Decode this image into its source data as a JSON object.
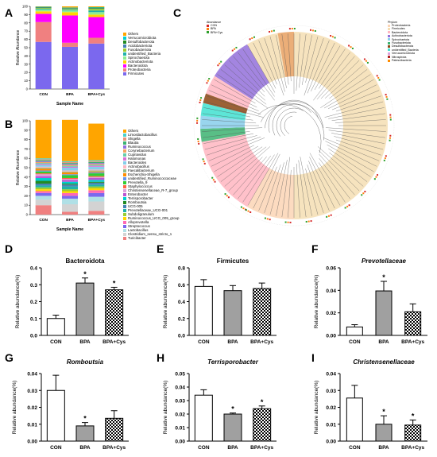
{
  "panel_letters": {
    "A": "A",
    "B": "B",
    "C": "C",
    "D": "D",
    "E": "E",
    "F": "F",
    "G": "G",
    "H": "H",
    "I": "I"
  },
  "colors": {
    "bar_con": "#ffffff",
    "bar_bpa": "#a0a0a0",
    "bar_cys_pattern": "checkered"
  },
  "stacked_axis": {
    "ylabel": "Relative Abundance",
    "xlabel": "Sample Name",
    "ticks": [
      "0",
      "10",
      "20",
      "30",
      "40",
      "50",
      "60",
      "70",
      "80",
      "90",
      "100"
    ]
  },
  "chart_data": [
    {
      "id": "A",
      "type": "bar",
      "stacked": true,
      "categories": [
        "CON",
        "BPA",
        "BPA+Cys"
      ],
      "xlabel": "Sample Name",
      "ylabel": "Relative Abundance",
      "ylim": [
        0,
        100
      ],
      "series": [
        {
          "name": "Firmicutes",
          "color": "#7b68ee",
          "values": [
            57,
            51,
            55
          ]
        },
        {
          "name": "Proteobacteria",
          "color": "#f08080",
          "values": [
            24,
            5,
            7
          ]
        },
        {
          "name": "Bacteroidota",
          "color": "#ff00ff",
          "values": [
            10,
            33,
            25
          ]
        },
        {
          "name": "Actinobacteriota",
          "color": "#ffd700",
          "values": [
            3,
            4,
            3
          ]
        },
        {
          "name": "Spirochaetota",
          "color": "#90ee90",
          "values": [
            2,
            2,
            3
          ]
        },
        {
          "name": "unidentified_Bacteria",
          "color": "#20b2aa",
          "values": [
            1,
            1,
            2
          ]
        },
        {
          "name": "Fusobacteriota",
          "color": "#9acd32",
          "values": [
            1,
            1,
            2
          ]
        },
        {
          "name": "Acidobacteriota",
          "color": "#4682b4",
          "values": [
            0.5,
            0.5,
            0.5
          ]
        },
        {
          "name": "Desulfobacterota",
          "color": "#228b22",
          "values": [
            0.5,
            0.5,
            1
          ]
        },
        {
          "name": "Verrucomicrobiota",
          "color": "#00ced1",
          "values": [
            0.5,
            0.5,
            0.5
          ]
        },
        {
          "name": "Others",
          "color": "#ffa500",
          "values": [
            0.5,
            1.5,
            1
          ]
        }
      ]
    },
    {
      "id": "B",
      "type": "bar",
      "stacked": true,
      "categories": [
        "CON",
        "BPA",
        "BPA+Cys"
      ],
      "xlabel": "Sample Name",
      "ylabel": "Relative Abundance",
      "ylim": [
        0,
        100
      ],
      "series": [
        {
          "name": "Turicibacter",
          "color": "#f08080",
          "values": [
            10,
            3,
            4
          ]
        },
        {
          "name": "Clostridium_sensu_stricto_1",
          "color": "#d3d3d3",
          "values": [
            6,
            8,
            10
          ]
        },
        {
          "name": "Lactobacillus",
          "color": "#b0e0e6",
          "values": [
            4,
            6,
            5
          ]
        },
        {
          "name": "Streptococcus",
          "color": "#7b68ee",
          "values": [
            3,
            3,
            4
          ]
        },
        {
          "name": "Alloprevotella",
          "color": "#ff69b4",
          "values": [
            2,
            3,
            3
          ]
        },
        {
          "name": "Ruminococcus_UCG_005_group",
          "color": "#ffd700",
          "values": [
            2,
            2,
            2
          ]
        },
        {
          "name": "Subdoligranulum",
          "color": "#9acd32",
          "values": [
            2,
            2,
            2
          ]
        },
        {
          "name": "Prevotellaceae_UCG-001",
          "color": "#20b2aa",
          "values": [
            2,
            3,
            2
          ]
        },
        {
          "name": "UCG-005",
          "color": "#4682b4",
          "values": [
            2,
            2,
            2
          ]
        },
        {
          "name": "Romboutsia",
          "color": "#228b22",
          "values": [
            3,
            1,
            1
          ]
        },
        {
          "name": "Terrisporobacter",
          "color": "#00ced1",
          "values": [
            3,
            2,
            2
          ]
        },
        {
          "name": "Enterobacter",
          "color": "#ba55d3",
          "values": [
            2,
            2,
            2
          ]
        },
        {
          "name": "Christensenellaceae_R-7_group",
          "color": "#dda0dd",
          "values": [
            2,
            1,
            1
          ]
        },
        {
          "name": "Staphylococcus",
          "color": "#ff6347",
          "values": [
            1,
            1,
            1
          ]
        },
        {
          "name": "Prevotella_9",
          "color": "#32cd32",
          "values": [
            2,
            3,
            3
          ]
        },
        {
          "name": "unidentified_Ruminococcaceae",
          "color": "#6495ed",
          "values": [
            1,
            1,
            1
          ]
        },
        {
          "name": "Escherichia-Shigella",
          "color": "#ff8c00",
          "values": [
            2,
            2,
            1
          ]
        },
        {
          "name": "Faecalibacterium",
          "color": "#8fbc8f",
          "values": [
            1,
            1,
            1
          ]
        },
        {
          "name": "Actinobacillus",
          "color": "#ffb6c1",
          "values": [
            1,
            1,
            1
          ]
        },
        {
          "name": "Bacteroides",
          "color": "#87ceeb",
          "values": [
            2,
            3,
            3
          ]
        },
        {
          "name": "Halomonas",
          "color": "#da70d6",
          "values": [
            1,
            1,
            1
          ]
        },
        {
          "name": "Cupriavidus",
          "color": "#66cdaa",
          "values": [
            1,
            1,
            1
          ]
        },
        {
          "name": "Corynebacterium",
          "color": "#f4a460",
          "values": [
            1,
            1,
            1
          ]
        },
        {
          "name": "Ruminococcus",
          "color": "#9370db",
          "values": [
            1,
            1,
            1
          ]
        },
        {
          "name": "Blautia",
          "color": "#3cb371",
          "values": [
            1,
            1,
            1
          ]
        },
        {
          "name": "Shigella",
          "color": "#e9967a",
          "values": [
            1,
            1,
            1
          ]
        },
        {
          "name": "Limosilactobacillus",
          "color": "#48d1cc",
          "values": [
            1,
            1,
            1
          ]
        },
        {
          "name": "Others",
          "color": "#ffa500",
          "values": [
            41,
            44,
            39
          ]
        }
      ]
    },
    {
      "id": "D",
      "type": "bar",
      "title": "Bacteroidota",
      "categories": [
        "CON",
        "BPA",
        "BPA+Cys"
      ],
      "values": [
        0.1,
        0.31,
        0.27
      ],
      "errors": [
        0.02,
        0.03,
        0.015
      ],
      "significant": [
        false,
        true,
        true
      ],
      "ylabel": "Relative abundance(%)",
      "ylim": [
        0,
        0.4
      ],
      "yticks": [
        "0.0",
        "0.1",
        "0.2",
        "0.3",
        "0.4"
      ]
    },
    {
      "id": "E",
      "type": "bar",
      "title": "Firmicutes",
      "categories": [
        "CON",
        "BPA",
        "BPA+Cys"
      ],
      "values": [
        0.58,
        0.53,
        0.555
      ],
      "errors": [
        0.08,
        0.06,
        0.065
      ],
      "significant": [
        false,
        false,
        false
      ],
      "ylabel": "Relative abundance(%)",
      "ylim": [
        0,
        0.8
      ],
      "yticks": [
        "0.0",
        "0.2",
        "0.4",
        "0.6",
        "0.8"
      ]
    },
    {
      "id": "F",
      "type": "bar",
      "title": "Prevotellaceae",
      "categories": [
        "CON",
        "BPA",
        "BPA+Cys"
      ],
      "values": [
        0.0075,
        0.0395,
        0.021
      ],
      "errors": [
        0.002,
        0.0085,
        0.007
      ],
      "significant": [
        false,
        true,
        false
      ],
      "ylabel": "Relative abundance(%)",
      "ylim": [
        0,
        0.06
      ],
      "yticks": [
        "0.00",
        "0.02",
        "0.04",
        "0.06"
      ]
    },
    {
      "id": "G",
      "type": "bar",
      "title": "Romboutsia",
      "categories": [
        "CON",
        "BPA",
        "BPA+Cys"
      ],
      "values": [
        0.03,
        0.009,
        0.0135
      ],
      "errors": [
        0.009,
        0.002,
        0.0045
      ],
      "significant": [
        false,
        true,
        false
      ],
      "ylabel": "Relative abundance(%)",
      "ylim": [
        0,
        0.04
      ],
      "yticks": [
        "0.00",
        "0.01",
        "0.02",
        "0.03",
        "0.04"
      ]
    },
    {
      "id": "H",
      "type": "bar",
      "title": "Terrisporobacter",
      "categories": [
        "CON",
        "BPA",
        "BPA+Cys"
      ],
      "values": [
        0.034,
        0.02,
        0.024
      ],
      "errors": [
        0.004,
        0.0008,
        0.002
      ],
      "significant": [
        false,
        true,
        true
      ],
      "ylabel": "Relative abundance(%)",
      "ylim": [
        0,
        0.05
      ],
      "yticks": [
        "0.00",
        "0.01",
        "0.02",
        "0.03",
        "0.04",
        "0.05"
      ]
    },
    {
      "id": "I",
      "type": "bar",
      "title": "Christensenellaceae",
      "categories": [
        "CON",
        "BPA",
        "BPA+Cys"
      ],
      "values": [
        0.0255,
        0.01,
        0.0095
      ],
      "errors": [
        0.0075,
        0.005,
        0.003
      ],
      "significant": [
        false,
        true,
        true
      ],
      "ylabel": "Relative abundance(%)",
      "ylim": [
        0,
        0.04
      ],
      "yticks": [
        "0.00",
        "0.01",
        "0.02",
        "0.03",
        "0.04"
      ]
    }
  ],
  "tree": {
    "legend_left_title": "Abundance",
    "legend_left": [
      {
        "name": "CON",
        "color": "#d62728"
      },
      {
        "name": "BPA",
        "color": "#ff7f0e"
      },
      {
        "name": "BPA+Cys",
        "color": "#2ca02c"
      }
    ],
    "legend_right_title": "Phylum",
    "legend_right": [
      {
        "name": "Proteobacteria",
        "color": "#fbd5b5"
      },
      {
        "name": "Firmicutes",
        "color": "#f5deb3"
      },
      {
        "name": "Bacteroidota",
        "color": "#ffb6c1"
      },
      {
        "name": "Actinobacteriota",
        "color": "#9370db"
      },
      {
        "name": "Spirochaetota",
        "color": "#87ceeb"
      },
      {
        "name": "Fusobacteriota",
        "color": "#3cb371"
      },
      {
        "name": "Desulfobacterota",
        "color": "#8b4513"
      },
      {
        "name": "unidentified_Bacteria",
        "color": "#40e0d0"
      },
      {
        "name": "Verrucomicrobiota",
        "color": "#dda0dd"
      },
      {
        "name": "Nitrospirota",
        "color": "#b22222"
      },
      {
        "name": "Patescibacteria",
        "color": "#ff8c00"
      }
    ]
  }
}
